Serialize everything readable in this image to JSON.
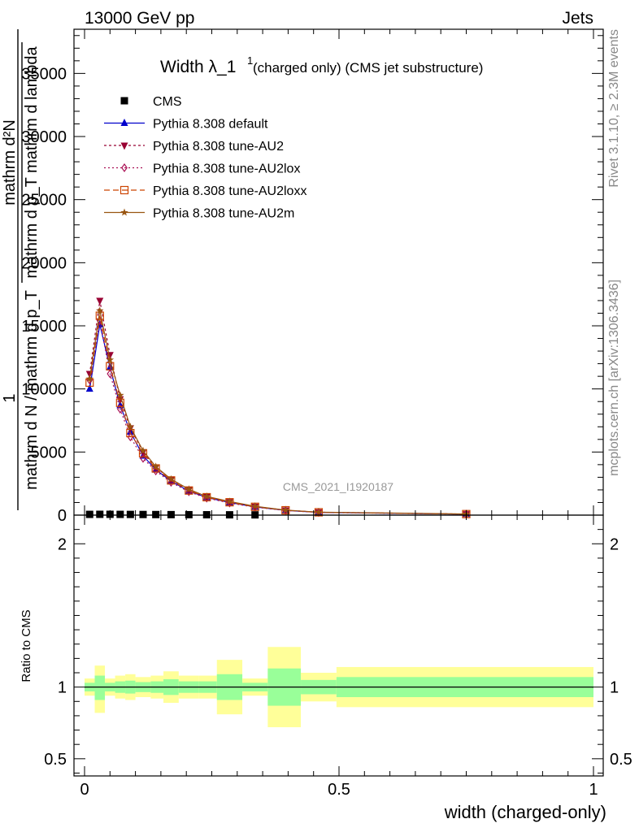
{
  "header": {
    "left": "13000 GeV pp",
    "right": "Jets"
  },
  "side_labels": {
    "rivet": "Rivet 3.1.10, ≥ 2.3M events",
    "mcplots": "mcplots.cern.ch [arXiv:1306.3436]"
  },
  "watermark": "CMS_2021_I1920187",
  "colors": {
    "cms": "#000000",
    "default": "#0000cc",
    "au2": "#990033",
    "au2lox": "#aa1155",
    "au2loxx": "#cc4400",
    "au2m": "#995511",
    "band_outer": "#ffff99",
    "band_inner": "#99ff99"
  },
  "chart_data": [
    {
      "type": "line",
      "title": "Width λ_1",
      "title_sup": "1",
      "title_suffix": " (charged only) (CMS jet substructure)",
      "ylabel_top": "1",
      "ylabel_numerator": "mathrm d²N",
      "ylabel_denominator": "mathrm d p_T mathrm d lambda",
      "ylabel_prefix_denominator": "mathrm d N / mathrm d p_T",
      "ylabel_sub": "T",
      "xlim": [
        0,
        1
      ],
      "ylim": [
        0,
        38500
      ],
      "yticks": [
        0,
        5000,
        10000,
        15000,
        20000,
        25000,
        30000,
        35000
      ],
      "ytick_labels": [
        "0",
        "5000",
        "10000",
        "15000",
        "20000",
        "25000",
        "30000",
        "35000"
      ],
      "legend_position": "top-left",
      "series": [
        {
          "name": "CMS",
          "marker": "square",
          "x": [
            0.01,
            0.03,
            0.05,
            0.07,
            0.09,
            0.115,
            0.14,
            0.17,
            0.205,
            0.24,
            0.285,
            0.335
          ],
          "y": [
            60,
            65,
            65,
            60,
            55,
            50,
            45,
            40,
            35,
            30,
            25,
            20
          ]
        },
        {
          "name": "Pythia 8.308 default",
          "marker": "triangle-up",
          "dash": "",
          "x": [
            0.01,
            0.03,
            0.05,
            0.07,
            0.09,
            0.115,
            0.14,
            0.17,
            0.205,
            0.24,
            0.285,
            0.335,
            0.395,
            0.46,
            0.75
          ],
          "y": [
            10000,
            15100,
            11700,
            8700,
            6600,
            4700,
            3600,
            2700,
            1900,
            1400,
            1000,
            650,
            380,
            220,
            80
          ]
        },
        {
          "name": "Pythia 8.308 tune-AU2",
          "marker": "triangle-down",
          "dash": "3,3",
          "x": [
            0.01,
            0.03,
            0.05,
            0.07,
            0.09,
            0.115,
            0.14,
            0.17,
            0.205,
            0.24,
            0.285,
            0.335,
            0.395,
            0.46,
            0.75
          ],
          "y": [
            11200,
            17000,
            12700,
            9200,
            6900,
            5000,
            3800,
            2800,
            2000,
            1450,
            1050,
            680,
            390,
            230,
            85
          ]
        },
        {
          "name": "Pythia 8.308 tune-AU2lox",
          "marker": "diamond-open",
          "dash": "2,3",
          "x": [
            0.01,
            0.03,
            0.05,
            0.07,
            0.09,
            0.115,
            0.14,
            0.17,
            0.205,
            0.24,
            0.285,
            0.335,
            0.395,
            0.46,
            0.75
          ],
          "y": [
            10700,
            15400,
            11200,
            8400,
            6200,
            4500,
            3500,
            2600,
            1850,
            1350,
            960,
            630,
            370,
            215,
            78
          ]
        },
        {
          "name": "Pythia 8.308 tune-AU2loxx",
          "marker": "square-open",
          "dash": "7,4",
          "x": [
            0.01,
            0.03,
            0.05,
            0.07,
            0.09,
            0.115,
            0.14,
            0.17,
            0.205,
            0.24,
            0.285,
            0.335,
            0.395,
            0.46,
            0.75
          ],
          "y": [
            10500,
            15800,
            11800,
            8900,
            6500,
            4900,
            3700,
            2750,
            1950,
            1420,
            1020,
            660,
            385,
            225,
            82
          ]
        },
        {
          "name": "Pythia 8.308 tune-AU2m",
          "marker": "star",
          "dash": "",
          "x": [
            0.01,
            0.03,
            0.05,
            0.07,
            0.09,
            0.115,
            0.14,
            0.17,
            0.205,
            0.24,
            0.285,
            0.335,
            0.395,
            0.46,
            0.75
          ],
          "y": [
            10800,
            16200,
            12300,
            9500,
            7000,
            5100,
            3850,
            2850,
            2050,
            1480,
            1080,
            700,
            400,
            235,
            88
          ]
        }
      ]
    },
    {
      "type": "area",
      "ylabel": "Ratio to CMS",
      "xlabel": "width (charged-only)",
      "xlim": [
        0,
        1
      ],
      "ylim": [
        0.38,
        2.2
      ],
      "yticks": [
        0.5,
        1,
        2
      ],
      "ytick_labels": [
        "0.5",
        "1",
        "2"
      ],
      "xticks": [
        0,
        0.5,
        1
      ],
      "xtick_labels": [
        "0",
        "0.5",
        "1"
      ],
      "reference": 1,
      "bins": [
        {
          "x0": 0.0,
          "x1": 0.02,
          "outer_lo": 0.94,
          "outer_hi": 1.06,
          "inner_lo": 0.97,
          "inner_hi": 1.03
        },
        {
          "x0": 0.02,
          "x1": 0.04,
          "outer_lo": 0.82,
          "outer_hi": 1.15,
          "inner_lo": 0.91,
          "inner_hi": 1.08
        },
        {
          "x0": 0.04,
          "x1": 0.06,
          "outer_lo": 0.94,
          "outer_hi": 1.06,
          "inner_lo": 0.97,
          "inner_hi": 1.03
        },
        {
          "x0": 0.06,
          "x1": 0.08,
          "outer_lo": 0.92,
          "outer_hi": 1.08,
          "inner_lo": 0.96,
          "inner_hi": 1.04
        },
        {
          "x0": 0.08,
          "x1": 0.1,
          "outer_lo": 0.91,
          "outer_hi": 1.09,
          "inner_lo": 0.955,
          "inner_hi": 1.045
        },
        {
          "x0": 0.1,
          "x1": 0.13,
          "outer_lo": 0.93,
          "outer_hi": 1.07,
          "inner_lo": 0.965,
          "inner_hi": 1.035
        },
        {
          "x0": 0.13,
          "x1": 0.155,
          "outer_lo": 0.92,
          "outer_hi": 1.08,
          "inner_lo": 0.96,
          "inner_hi": 1.04
        },
        {
          "x0": 0.155,
          "x1": 0.185,
          "outer_lo": 0.89,
          "outer_hi": 1.11,
          "inner_lo": 0.945,
          "inner_hi": 1.055
        },
        {
          "x0": 0.185,
          "x1": 0.225,
          "outer_lo": 0.92,
          "outer_hi": 1.08,
          "inner_lo": 0.96,
          "inner_hi": 1.04
        },
        {
          "x0": 0.225,
          "x1": 0.26,
          "outer_lo": 0.92,
          "outer_hi": 1.08,
          "inner_lo": 0.96,
          "inner_hi": 1.04
        },
        {
          "x0": 0.26,
          "x1": 0.31,
          "outer_lo": 0.81,
          "outer_hi": 1.19,
          "inner_lo": 0.91,
          "inner_hi": 1.09
        },
        {
          "x0": 0.31,
          "x1": 0.36,
          "outer_lo": 0.94,
          "outer_hi": 1.06,
          "inner_lo": 0.97,
          "inner_hi": 1.03
        },
        {
          "x0": 0.36,
          "x1": 0.425,
          "outer_lo": 0.72,
          "outer_hi": 1.28,
          "inner_lo": 0.87,
          "inner_hi": 1.13
        },
        {
          "x0": 0.425,
          "x1": 0.495,
          "outer_lo": 0.9,
          "outer_hi": 1.1,
          "inner_lo": 0.95,
          "inner_hi": 1.05
        },
        {
          "x0": 0.495,
          "x1": 1.0,
          "outer_lo": 0.86,
          "outer_hi": 1.14,
          "inner_lo": 0.93,
          "inner_hi": 1.07
        }
      ]
    }
  ]
}
